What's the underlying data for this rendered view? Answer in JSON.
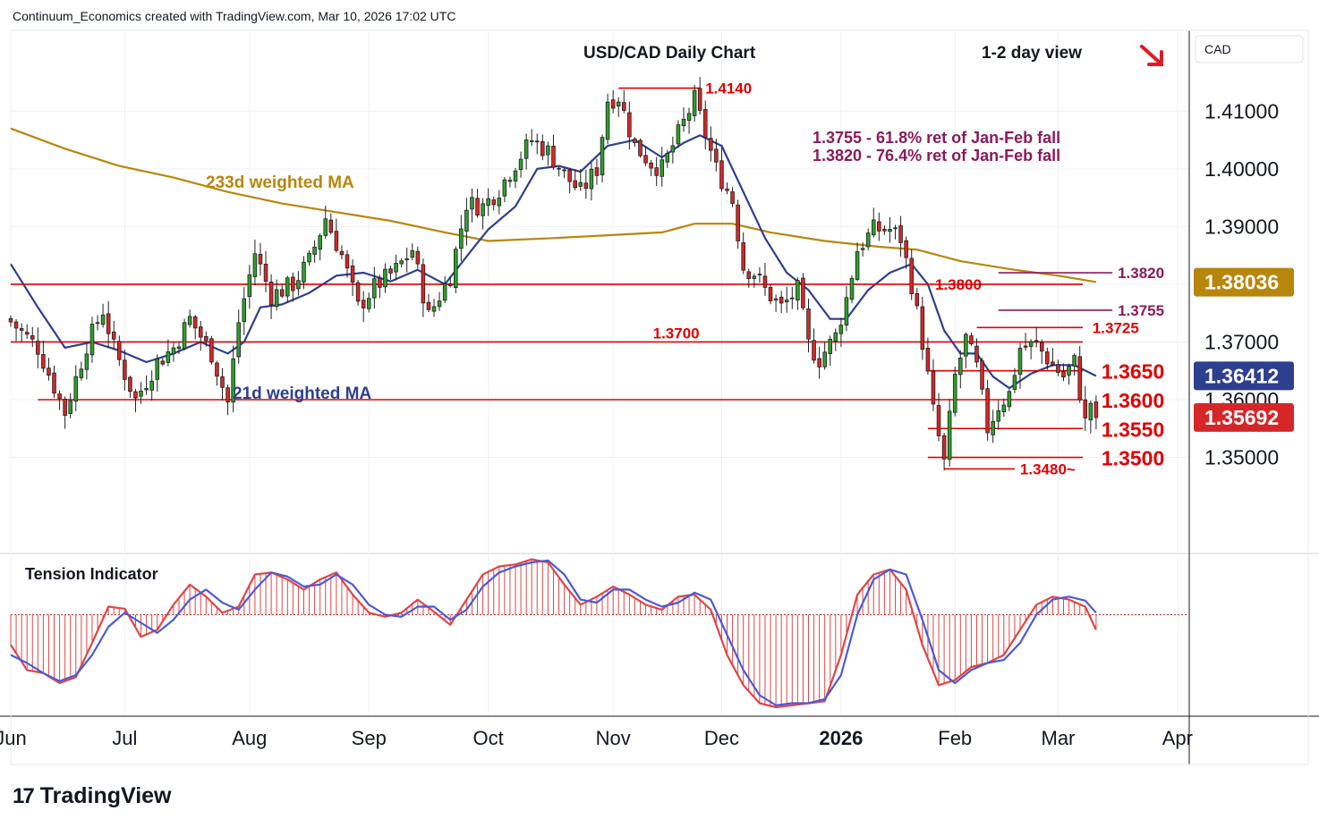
{
  "header": "Continuum_Economics created with TradingView.com, Mar 10, 2026 17:02 UTC",
  "brand": {
    "logo": "17",
    "name": "TradingView"
  },
  "currency_label": "CAD",
  "colors": {
    "up": "#2ca02c",
    "down": "#d62728",
    "candle_border": "#1f1f1f",
    "level_line": "#e00000",
    "ma233": "#b8860b",
    "ma21": "#2e3f8f",
    "ret_text": "#8b1a5a",
    "grid": "#eef0f3",
    "tension_red": "#e04545",
    "tension_blue": "#4a5ad8"
  },
  "chart_data": [
    {
      "type": "candlestick",
      "title": "USD/CAD Daily Chart",
      "subtitle": "1-2 day view",
      "view_arrow": "down-right-arrow",
      "y_ticks": [
        "1.41000",
        "1.40000",
        "1.39000",
        "1.38000",
        "1.37000",
        "1.36000",
        "1.35000"
      ],
      "ylim": [
        1.3335,
        1.424
      ],
      "x_ticks": [
        {
          "label": "Jun",
          "day": 0
        },
        {
          "label": "Jul",
          "day": 21
        },
        {
          "label": "Aug",
          "day": 44
        },
        {
          "label": "Sep",
          "day": 66
        },
        {
          "label": "Oct",
          "day": 88
        },
        {
          "label": "Nov",
          "day": 111
        },
        {
          "label": "Dec",
          "day": 131
        },
        {
          "label": "2026",
          "day": 153,
          "bold": true
        },
        {
          "label": "Feb",
          "day": 174
        },
        {
          "label": "Mar",
          "day": 193
        },
        {
          "label": "Apr",
          "day": 215
        }
      ],
      "xlim": [
        0,
        217
      ],
      "price_tags": [
        {
          "label": "1.38036",
          "value": 1.38036,
          "bg": "#b8860b"
        },
        {
          "label": "1.36412",
          "value": 1.36412,
          "bg": "#2e3f8f"
        },
        {
          "label": "1.35692",
          "value": 1.35692,
          "bg": "#d62728"
        }
      ],
      "horizontal_levels": [
        {
          "value": 1.38,
          "label": "1.3800",
          "x_start": 0,
          "label_day": 170,
          "size": "small"
        },
        {
          "value": 1.37,
          "label": "1.3700",
          "x_start": 0,
          "label_day": 118,
          "size": "small",
          "label_above": true
        },
        {
          "value": 1.36,
          "label": "1.3600",
          "x_start": 5,
          "label_day": 200,
          "size": "large"
        },
        {
          "value": 1.365,
          "label": "1.3650",
          "x_start": 169,
          "label_day": 200,
          "size": "large"
        },
        {
          "value": 1.355,
          "label": "1.3550",
          "x_start": 169,
          "label_day": 200,
          "size": "large"
        },
        {
          "value": 1.35,
          "label": "1.3500",
          "x_start": 169,
          "label_day": 200,
          "size": "large"
        },
        {
          "value": 1.3725,
          "label": "1.3725",
          "x_start": 178,
          "label_day": 199,
          "size": "small"
        }
      ],
      "annotations": [
        {
          "label": "1.4140",
          "value": 1.414,
          "x_start": 112,
          "x_end": 127,
          "color": "#e00000"
        },
        {
          "label": "1.3480~",
          "value": 1.348,
          "x_start": 172,
          "x_end": 185,
          "color": "#e00000"
        },
        {
          "label": "1.3820",
          "value": 1.382,
          "x_start": 182,
          "x_end": 203,
          "color": "#8b1a5a"
        },
        {
          "label": "1.3755",
          "value": 1.3755,
          "x_start": 182,
          "x_end": 203,
          "color": "#8b1a5a"
        }
      ],
      "retracement_notes": [
        "1.3755 - 61.8% ret of Jan-Feb fall",
        "1.3820 - 76.4% ret of Jan-Feb fall"
      ],
      "ma_labels": {
        "ma233": "233d weighted MA",
        "ma21": "21d weighted MA"
      },
      "anchors": [
        [
          0,
          1.3735
        ],
        [
          5,
          1.369
        ],
        [
          10,
          1.3578
        ],
        [
          14,
          1.3695
        ],
        [
          17,
          1.3755
        ],
        [
          19,
          1.369
        ],
        [
          23,
          1.36
        ],
        [
          27,
          1.3665
        ],
        [
          30,
          1.369
        ],
        [
          33,
          1.374
        ],
        [
          37,
          1.368
        ],
        [
          40,
          1.3595
        ],
        [
          42,
          1.3735
        ],
        [
          45,
          1.3855
        ],
        [
          48,
          1.378
        ],
        [
          52,
          1.38
        ],
        [
          55,
          1.384
        ],
        [
          58,
          1.3915
        ],
        [
          61,
          1.385
        ],
        [
          64,
          1.376
        ],
        [
          67,
          1.3795
        ],
        [
          71,
          1.3825
        ],
        [
          74,
          1.386
        ],
        [
          77,
          1.3745
        ],
        [
          81,
          1.3815
        ],
        [
          84,
          1.394
        ],
        [
          87,
          1.3935
        ],
        [
          90,
          1.3965
        ],
        [
          93,
          1.401
        ],
        [
          96,
          1.405
        ],
        [
          99,
          1.403
        ],
        [
          102,
          1.399
        ],
        [
          105,
          1.396
        ],
        [
          108,
          1.4
        ],
        [
          110,
          1.412
        ],
        [
          112,
          1.4125
        ],
        [
          115,
          1.404
        ],
        [
          118,
          1.401
        ],
        [
          120,
          1.4
        ],
        [
          123,
          1.406
        ],
        [
          126,
          1.412
        ],
        [
          128,
          1.406
        ],
        [
          130,
          1.4
        ],
        [
          133,
          1.3945
        ],
        [
          135,
          1.383
        ],
        [
          137,
          1.382
        ],
        [
          139,
          1.379
        ],
        [
          142,
          1.376
        ],
        [
          145,
          1.379
        ],
        [
          147,
          1.3695
        ],
        [
          149,
          1.367
        ],
        [
          152,
          1.371
        ],
        [
          154,
          1.3775
        ],
        [
          156,
          1.386
        ],
        [
          159,
          1.3895
        ],
        [
          162,
          1.3895
        ],
        [
          164,
          1.388
        ],
        [
          166,
          1.38
        ],
        [
          168,
          1.37
        ],
        [
          170,
          1.358
        ],
        [
          172,
          1.349
        ],
        [
          174,
          1.364
        ],
        [
          176,
          1.3705
        ],
        [
          178,
          1.3655
        ],
        [
          180,
          1.355
        ],
        [
          182,
          1.359
        ],
        [
          184,
          1.361
        ],
        [
          186,
          1.369
        ],
        [
          189,
          1.3695
        ],
        [
          192,
          1.366
        ],
        [
          194,
          1.364
        ],
        [
          196,
          1.3665
        ],
        [
          198,
          1.356
        ],
        [
          199,
          1.3596
        ],
        [
          200,
          1.3569
        ]
      ],
      "ma233_points": [
        [
          0,
          1.407
        ],
        [
          10,
          1.4035
        ],
        [
          20,
          1.4005
        ],
        [
          30,
          1.3985
        ],
        [
          40,
          1.396
        ],
        [
          50,
          1.394
        ],
        [
          60,
          1.3925
        ],
        [
          70,
          1.391
        ],
        [
          80,
          1.389
        ],
        [
          88,
          1.3875
        ],
        [
          100,
          1.388
        ],
        [
          110,
          1.3885
        ],
        [
          120,
          1.389
        ],
        [
          126,
          1.3905
        ],
        [
          133,
          1.3905
        ],
        [
          140,
          1.389
        ],
        [
          150,
          1.3875
        ],
        [
          160,
          1.3865
        ],
        [
          167,
          1.386
        ],
        [
          175,
          1.384
        ],
        [
          185,
          1.3825
        ],
        [
          193,
          1.3815
        ],
        [
          200,
          1.3804
        ]
      ],
      "ma21_points": [
        [
          0,
          1.3835
        ],
        [
          5,
          1.376
        ],
        [
          10,
          1.369
        ],
        [
          15,
          1.37
        ],
        [
          20,
          1.3685
        ],
        [
          25,
          1.3665
        ],
        [
          30,
          1.368
        ],
        [
          35,
          1.37
        ],
        [
          40,
          1.368
        ],
        [
          43,
          1.37
        ],
        [
          46,
          1.376
        ],
        [
          50,
          1.3765
        ],
        [
          55,
          1.3785
        ],
        [
          60,
          1.3815
        ],
        [
          65,
          1.382
        ],
        [
          70,
          1.3805
        ],
        [
          75,
          1.3825
        ],
        [
          80,
          1.38
        ],
        [
          85,
          1.386
        ],
        [
          88,
          1.3895
        ],
        [
          93,
          1.3935
        ],
        [
          97,
          1.4
        ],
        [
          101,
          1.4005
        ],
        [
          105,
          1.3995
        ],
        [
          110,
          1.404
        ],
        [
          115,
          1.405
        ],
        [
          120,
          1.402
        ],
        [
          124,
          1.4045
        ],
        [
          127,
          1.4058
        ],
        [
          131,
          1.404
        ],
        [
          135,
          1.396
        ],
        [
          139,
          1.388
        ],
        [
          143,
          1.382
        ],
        [
          147,
          1.379
        ],
        [
          151,
          1.374
        ],
        [
          154,
          1.374
        ],
        [
          158,
          1.379
        ],
        [
          162,
          1.382
        ],
        [
          166,
          1.3835
        ],
        [
          169,
          1.38
        ],
        [
          172,
          1.372
        ],
        [
          175,
          1.368
        ],
        [
          178,
          1.368
        ],
        [
          181,
          1.364
        ],
        [
          184,
          1.362
        ],
        [
          188,
          1.3645
        ],
        [
          192,
          1.366
        ],
        [
          196,
          1.366
        ],
        [
          200,
          1.3641
        ]
      ]
    },
    {
      "type": "oscillator",
      "title": "Tension Indicator",
      "zero_level": 0,
      "ylim": [
        -100,
        60
      ],
      "red_points": [
        [
          0,
          -30
        ],
        [
          3,
          -55
        ],
        [
          6,
          -58
        ],
        [
          9,
          -68
        ],
        [
          12,
          -62
        ],
        [
          15,
          -28
        ],
        [
          18,
          8
        ],
        [
          21,
          6
        ],
        [
          24,
          -22
        ],
        [
          27,
          -15
        ],
        [
          30,
          10
        ],
        [
          33,
          30
        ],
        [
          36,
          18
        ],
        [
          39,
          2
        ],
        [
          42,
          8
        ],
        [
          45,
          40
        ],
        [
          48,
          42
        ],
        [
          51,
          35
        ],
        [
          54,
          25
        ],
        [
          57,
          35
        ],
        [
          60,
          42
        ],
        [
          63,
          20
        ],
        [
          66,
          2
        ],
        [
          69,
          -2
        ],
        [
          72,
          2
        ],
        [
          75,
          15
        ],
        [
          78,
          3
        ],
        [
          81,
          -10
        ],
        [
          84,
          15
        ],
        [
          87,
          40
        ],
        [
          90,
          48
        ],
        [
          93,
          50
        ],
        [
          96,
          55
        ],
        [
          99,
          52
        ],
        [
          102,
          30
        ],
        [
          105,
          10
        ],
        [
          108,
          18
        ],
        [
          111,
          28
        ],
        [
          114,
          20
        ],
        [
          117,
          10
        ],
        [
          120,
          5
        ],
        [
          123,
          18
        ],
        [
          126,
          20
        ],
        [
          129,
          5
        ],
        [
          132,
          -40
        ],
        [
          135,
          -70
        ],
        [
          138,
          -88
        ],
        [
          141,
          -92
        ],
        [
          144,
          -90
        ],
        [
          147,
          -88
        ],
        [
          150,
          -86
        ],
        [
          153,
          -40
        ],
        [
          156,
          20
        ],
        [
          159,
          40
        ],
        [
          162,
          45
        ],
        [
          165,
          25
        ],
        [
          168,
          -30
        ],
        [
          171,
          -70
        ],
        [
          174,
          -65
        ],
        [
          177,
          -52
        ],
        [
          180,
          -48
        ],
        [
          183,
          -40
        ],
        [
          186,
          -15
        ],
        [
          189,
          10
        ],
        [
          192,
          18
        ],
        [
          195,
          15
        ],
        [
          198,
          8
        ],
        [
          200,
          -15
        ]
      ],
      "blue_points": [
        [
          0,
          -40
        ],
        [
          3,
          -48
        ],
        [
          6,
          -58
        ],
        [
          9,
          -66
        ],
        [
          12,
          -60
        ],
        [
          15,
          -40
        ],
        [
          18,
          -12
        ],
        [
          21,
          2
        ],
        [
          24,
          -8
        ],
        [
          27,
          -18
        ],
        [
          30,
          -5
        ],
        [
          33,
          15
        ],
        [
          36,
          25
        ],
        [
          39,
          12
        ],
        [
          42,
          5
        ],
        [
          45,
          25
        ],
        [
          48,
          42
        ],
        [
          51,
          38
        ],
        [
          54,
          28
        ],
        [
          57,
          30
        ],
        [
          60,
          40
        ],
        [
          63,
          30
        ],
        [
          66,
          10
        ],
        [
          69,
          0
        ],
        [
          72,
          -2
        ],
        [
          75,
          8
        ],
        [
          78,
          8
        ],
        [
          81,
          -5
        ],
        [
          84,
          5
        ],
        [
          87,
          28
        ],
        [
          90,
          42
        ],
        [
          93,
          48
        ],
        [
          96,
          52
        ],
        [
          99,
          54
        ],
        [
          102,
          40
        ],
        [
          105,
          15
        ],
        [
          108,
          12
        ],
        [
          111,
          25
        ],
        [
          114,
          25
        ],
        [
          117,
          15
        ],
        [
          120,
          8
        ],
        [
          123,
          12
        ],
        [
          126,
          22
        ],
        [
          129,
          15
        ],
        [
          132,
          -20
        ],
        [
          135,
          -55
        ],
        [
          138,
          -80
        ],
        [
          141,
          -90
        ],
        [
          144,
          -88
        ],
        [
          147,
          -88
        ],
        [
          150,
          -84
        ],
        [
          153,
          -60
        ],
        [
          156,
          0
        ],
        [
          159,
          35
        ],
        [
          162,
          45
        ],
        [
          165,
          40
        ],
        [
          168,
          -5
        ],
        [
          171,
          -55
        ],
        [
          174,
          -68
        ],
        [
          177,
          -55
        ],
        [
          180,
          -48
        ],
        [
          183,
          -45
        ],
        [
          186,
          -28
        ],
        [
          189,
          0
        ],
        [
          192,
          15
        ],
        [
          195,
          18
        ],
        [
          198,
          14
        ],
        [
          200,
          2
        ]
      ]
    }
  ]
}
